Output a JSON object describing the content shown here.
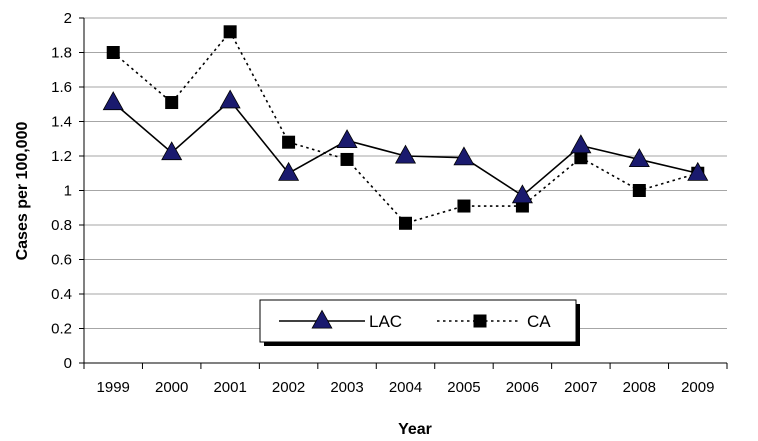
{
  "chart_data": {
    "type": "line",
    "title": "",
    "xlabel": "Year",
    "ylabel": "Cases per 100,000",
    "categories": [
      "1999",
      "2000",
      "2001",
      "2002",
      "2003",
      "2004",
      "2005",
      "2006",
      "2007",
      "2008",
      "2009"
    ],
    "yticks": [
      "0",
      "0.2",
      "0.4",
      "0.6",
      "0.8",
      "1",
      "1.2",
      "1.4",
      "1.6",
      "1.8",
      "2"
    ],
    "ylim": [
      0,
      2
    ],
    "grid": true,
    "legend_position": "bottom-center",
    "series": [
      {
        "name": "LAC",
        "marker": "triangle",
        "line_style": "solid",
        "color": "#000000",
        "marker_color": "#1a1a6e",
        "values": [
          1.51,
          1.22,
          1.52,
          1.1,
          1.29,
          1.2,
          1.19,
          0.97,
          1.26,
          1.18,
          1.1
        ]
      },
      {
        "name": "CA",
        "marker": "square",
        "line_style": "dotted",
        "color": "#000000",
        "marker_color": "#000000",
        "values": [
          1.8,
          1.51,
          1.92,
          1.28,
          1.18,
          0.81,
          0.91,
          0.91,
          1.19,
          1.0,
          1.1
        ]
      }
    ]
  }
}
